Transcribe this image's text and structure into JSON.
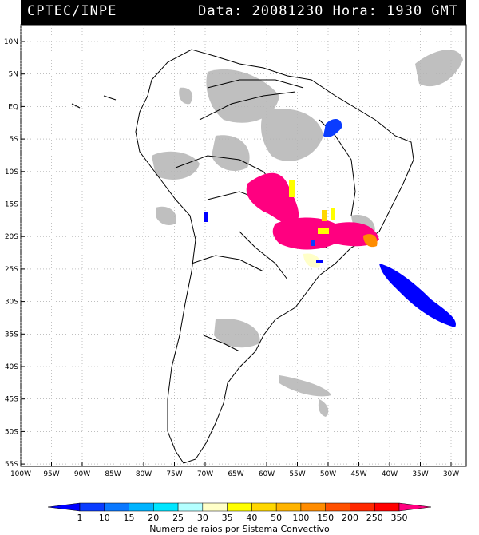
{
  "header": {
    "org": "CPTEC/INPE",
    "date_label": "Data:",
    "date": "20081230",
    "hour_label": "Hora:",
    "hour": "1930 GMT"
  },
  "map": {
    "lat_labels": [
      "10N",
      "5N",
      "EQ",
      "5S",
      "10S",
      "15S",
      "20S",
      "25S",
      "30S",
      "35S",
      "40S",
      "45S",
      "50S",
      "55S"
    ],
    "lon_labels": [
      "100W",
      "95W",
      "90W",
      "85W",
      "80W",
      "75W",
      "70W",
      "65W",
      "60W",
      "55W",
      "50W",
      "45W",
      "40W",
      "35W",
      "30W"
    ]
  },
  "colorbar": {
    "ticks": [
      "1",
      "10",
      "15",
      "20",
      "25",
      "30",
      "35",
      "40",
      "50",
      "100",
      "150",
      "200",
      "250",
      "350"
    ],
    "colors": [
      "#0000ff",
      "#0a3cff",
      "#0a78ff",
      "#00b4ff",
      "#00e6ff",
      "#b4ffff",
      "#ffffc8",
      "#ffff00",
      "#ffd700",
      "#ffb400",
      "#ff8c00",
      "#ff5000",
      "#ff2800",
      "#ff0000",
      "#ff0080"
    ],
    "label": "Numero de raios por Sistema Convectivo"
  }
}
